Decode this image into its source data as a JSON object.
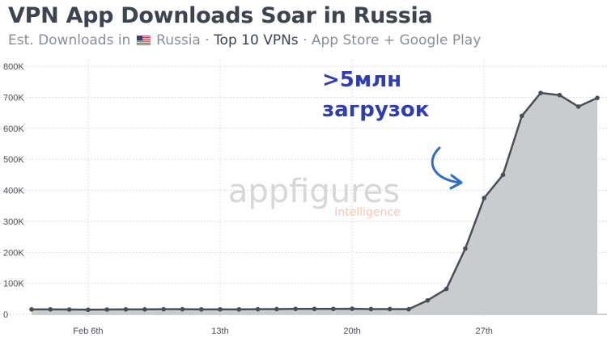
{
  "header": {
    "title": "VPN App Downloads Soar in Russia",
    "subtitle_prefix": "Est. Downloads in",
    "subtitle_country": "Russia",
    "subtitle_sep1": "·",
    "subtitle_strong": "Top 10 VPNs",
    "subtitle_sep2": "·",
    "subtitle_suffix": "App Store + Google Play",
    "flag_icon": "us-flag-icon"
  },
  "watermark": {
    "brand": "appfigures",
    "sub": "Intelligence"
  },
  "annotation": {
    "line1": ">5млн",
    "line2": "загрузок",
    "color": "#2f3db5",
    "icon": "curved-arrow-icon"
  },
  "colors": {
    "line": "#4a4f57",
    "area": "#c9cbcd",
    "grid": "#dcdcdc"
  },
  "chart_data": {
    "type": "area",
    "title": "VPN App Downloads Soar in Russia",
    "xlabel": "",
    "ylabel": "",
    "ylim": [
      0,
      800000
    ],
    "yticks": [
      0,
      100000,
      200000,
      300000,
      400000,
      500000,
      600000,
      700000,
      800000
    ],
    "ytick_labels": [
      "0",
      "100K",
      "200K",
      "300K",
      "400K",
      "500K",
      "600K",
      "700K",
      "800K"
    ],
    "xticks": [
      {
        "label": "Feb 6th",
        "index": 3
      },
      {
        "label": "13th",
        "index": 10
      },
      {
        "label": "20th",
        "index": 17
      },
      {
        "label": "27th",
        "index": 24
      }
    ],
    "grid": true,
    "x": [
      "Feb 3",
      "Feb 4",
      "Feb 5",
      "Feb 6",
      "Feb 7",
      "Feb 8",
      "Feb 9",
      "Feb 10",
      "Feb 11",
      "Feb 12",
      "Feb 13",
      "Feb 14",
      "Feb 15",
      "Feb 16",
      "Feb 17",
      "Feb 18",
      "Feb 19",
      "Feb 20",
      "Feb 21",
      "Feb 22",
      "Feb 23",
      "Feb 24",
      "Feb 25",
      "Feb 26",
      "Feb 27",
      "Feb 28",
      "Mar 1",
      "Mar 2",
      "Mar 3",
      "Mar 4",
      "Mar 5"
    ],
    "series": [
      {
        "values": [
          16000,
          16000,
          15500,
          15000,
          15500,
          16000,
          16000,
          16500,
          16500,
          16000,
          16000,
          16000,
          16500,
          17000,
          17500,
          17500,
          17500,
          18000,
          17000,
          17000,
          16500,
          45000,
          82000,
          212000,
          375000,
          450000,
          640000,
          714000,
          707000,
          670000,
          698000
        ]
      }
    ]
  }
}
